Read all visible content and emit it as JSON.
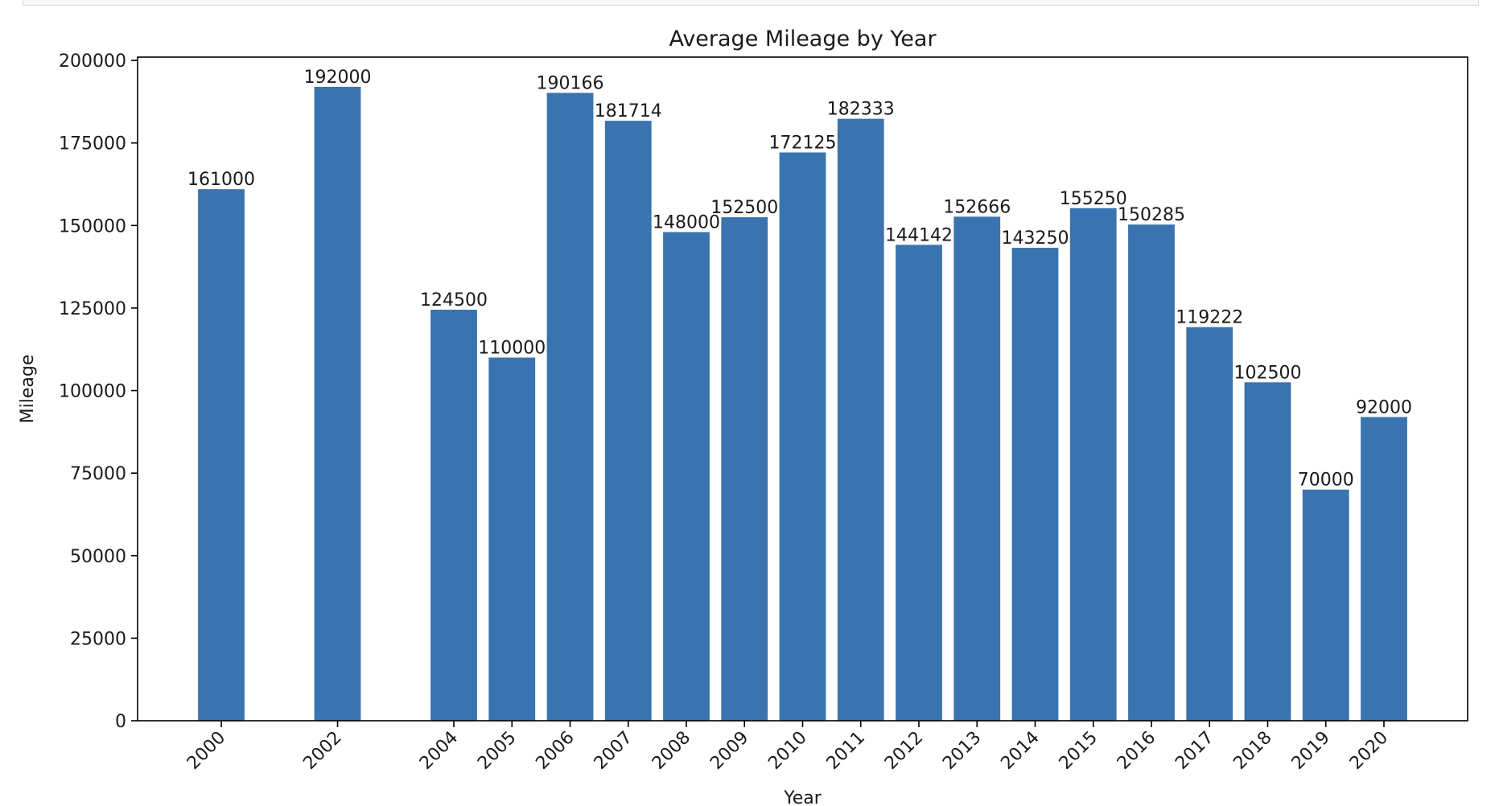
{
  "chart_data": {
    "type": "bar",
    "title": "Average Mileage by Year",
    "xlabel": "Year",
    "ylabel": "Mileage",
    "ylim": [
      0,
      201000
    ],
    "yticks": [
      0,
      25000,
      50000,
      75000,
      100000,
      125000,
      150000,
      175000,
      200000
    ],
    "x": [
      2000,
      2002,
      2004,
      2005,
      2006,
      2007,
      2008,
      2009,
      2010,
      2011,
      2012,
      2013,
      2014,
      2015,
      2016,
      2017,
      2018,
      2019,
      2020
    ],
    "values": [
      161000,
      192000,
      124500,
      110000,
      190166,
      181714,
      148000,
      152500,
      172125,
      182333,
      144142,
      152666,
      143250,
      155250,
      150285,
      119222,
      102500,
      70000,
      92000
    ],
    "bar_color": "#3a74b0",
    "grid": false,
    "legend": false
  }
}
